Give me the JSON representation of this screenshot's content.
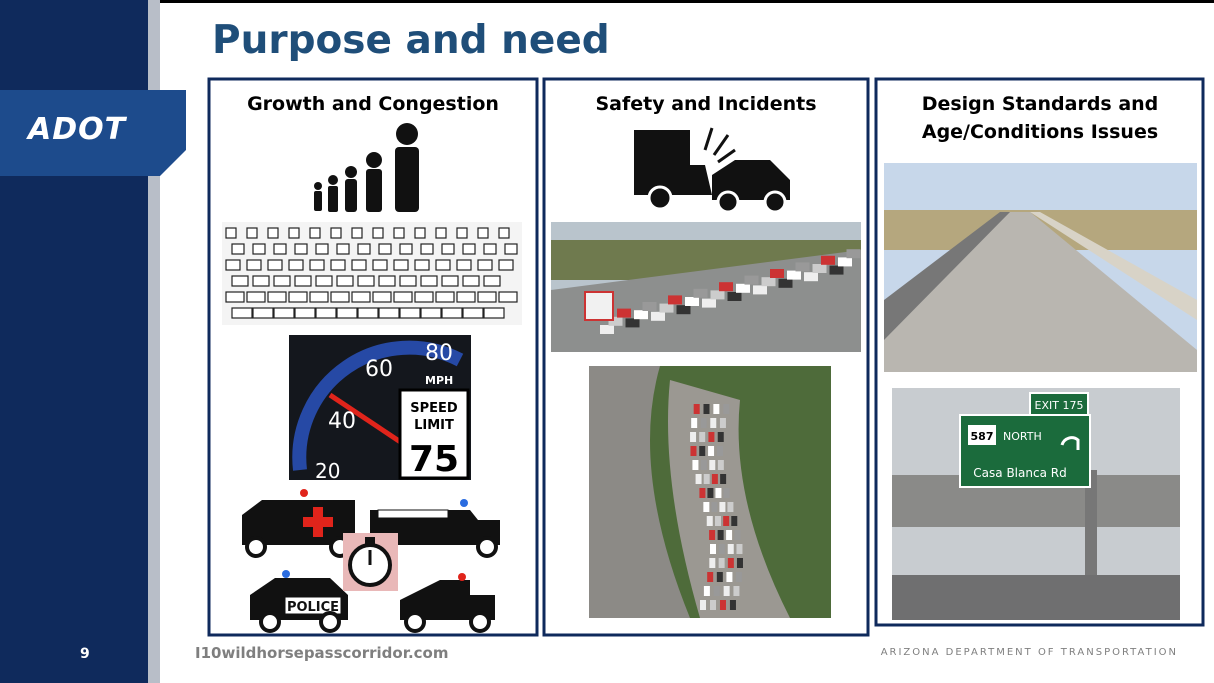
{
  "sidebar": {
    "logo": "ADOT",
    "page_number": "9"
  },
  "header": {
    "title": "Purpose and need"
  },
  "panels": [
    {
      "heading": "Growth and Congestion",
      "speedometer": {
        "numbers": [
          "80",
          "60",
          "40",
          "20"
        ],
        "unit": "MPH"
      },
      "speed_limit_sign": {
        "line1": "SPEED",
        "line2": "LIMIT",
        "limit": "75"
      },
      "police_label": "POLICE"
    },
    {
      "heading": "Safety and Incidents"
    },
    {
      "heading": "Design Standards and Age/Conditions Issues",
      "road_sign": {
        "exit": "EXIT 175",
        "route": "587",
        "direction": "NORTH",
        "street": "Casa Blanca Rd"
      }
    }
  ],
  "footer": {
    "website": "I10wildhorsepasscorridor.com",
    "organization": "ARIZONA DEPARTMENT OF TRANSPORTATION"
  }
}
